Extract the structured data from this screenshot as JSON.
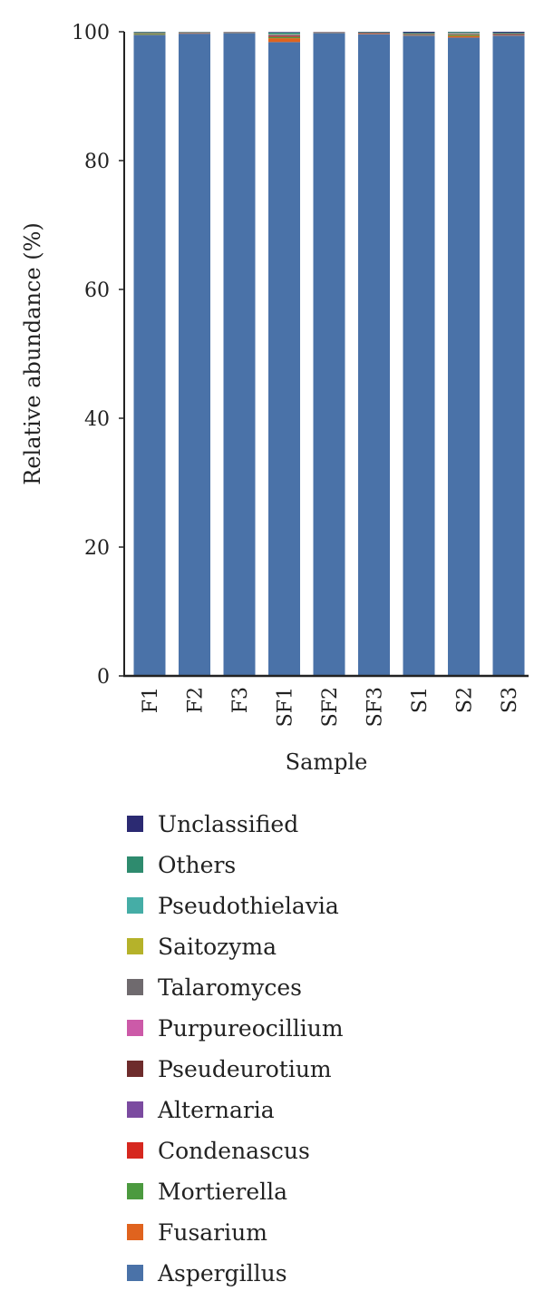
{
  "chart_data": {
    "type": "bar",
    "stacked": true,
    "xlabel": "Sample",
    "ylabel": "Relative abundance (%)",
    "ylim": [
      0,
      100
    ],
    "yticks": [
      0,
      20,
      40,
      60,
      80,
      100
    ],
    "grid": false,
    "legend_position": "bottom",
    "categories": [
      "F1",
      "F2",
      "F3",
      "SF1",
      "SF2",
      "SF3",
      "S1",
      "S2",
      "S3"
    ],
    "series": [
      {
        "name": "Aspergillus",
        "color": "#4A72A8",
        "values": [
          99.5,
          99.7,
          99.8,
          98.4,
          99.8,
          99.6,
          99.4,
          99.1,
          99.4
        ]
      },
      {
        "name": "Fusarium",
        "color": "#E0631E",
        "values": [
          0.05,
          0.05,
          0.03,
          0.6,
          0.03,
          0.05,
          0.05,
          0.25,
          0.05
        ]
      },
      {
        "name": "Mortierella",
        "color": "#4C9A3F",
        "values": [
          0.15,
          0.03,
          0.02,
          0.2,
          0.02,
          0.03,
          0.05,
          0.2,
          0.03
        ]
      },
      {
        "name": "Condenascus",
        "color": "#D6281F",
        "values": [
          0.02,
          0.02,
          0.02,
          0.1,
          0.02,
          0.02,
          0.02,
          0.05,
          0.02
        ]
      },
      {
        "name": "Alternaria",
        "color": "#7B4BA0",
        "values": [
          0.02,
          0.02,
          0.02,
          0.05,
          0.02,
          0.02,
          0.02,
          0.03,
          0.02
        ]
      },
      {
        "name": "Pseudeurotium",
        "color": "#6E2C2C",
        "values": [
          0.05,
          0.05,
          0.03,
          0.1,
          0.03,
          0.1,
          0.1,
          0.05,
          0.15
        ]
      },
      {
        "name": "Purpureocillium",
        "color": "#CC5AA8",
        "values": [
          0.01,
          0.01,
          0.01,
          0.05,
          0.01,
          0.01,
          0.01,
          0.02,
          0.01
        ]
      },
      {
        "name": "Talaromyces",
        "color": "#6F6A6E",
        "values": [
          0.02,
          0.02,
          0.01,
          0.05,
          0.02,
          0.02,
          0.05,
          0.05,
          0.05
        ]
      },
      {
        "name": "Saitozyma",
        "color": "#B5B22A",
        "values": [
          0.02,
          0.01,
          0.01,
          0.05,
          0.01,
          0.01,
          0.01,
          0.03,
          0.01
        ]
      },
      {
        "name": "Pseudothielavia",
        "color": "#45ADA6",
        "values": [
          0.02,
          0.01,
          0.01,
          0.05,
          0.01,
          0.01,
          0.02,
          0.05,
          0.02
        ]
      },
      {
        "name": "Others",
        "color": "#2E8B6E",
        "values": [
          0.1,
          0.05,
          0.03,
          0.2,
          0.02,
          0.08,
          0.12,
          0.12,
          0.1
        ]
      },
      {
        "name": "Unclassified",
        "color": "#2B2A72",
        "values": [
          0.04,
          0.03,
          0.01,
          0.1,
          0.01,
          0.05,
          0.15,
          0.05,
          0.14
        ]
      }
    ]
  }
}
